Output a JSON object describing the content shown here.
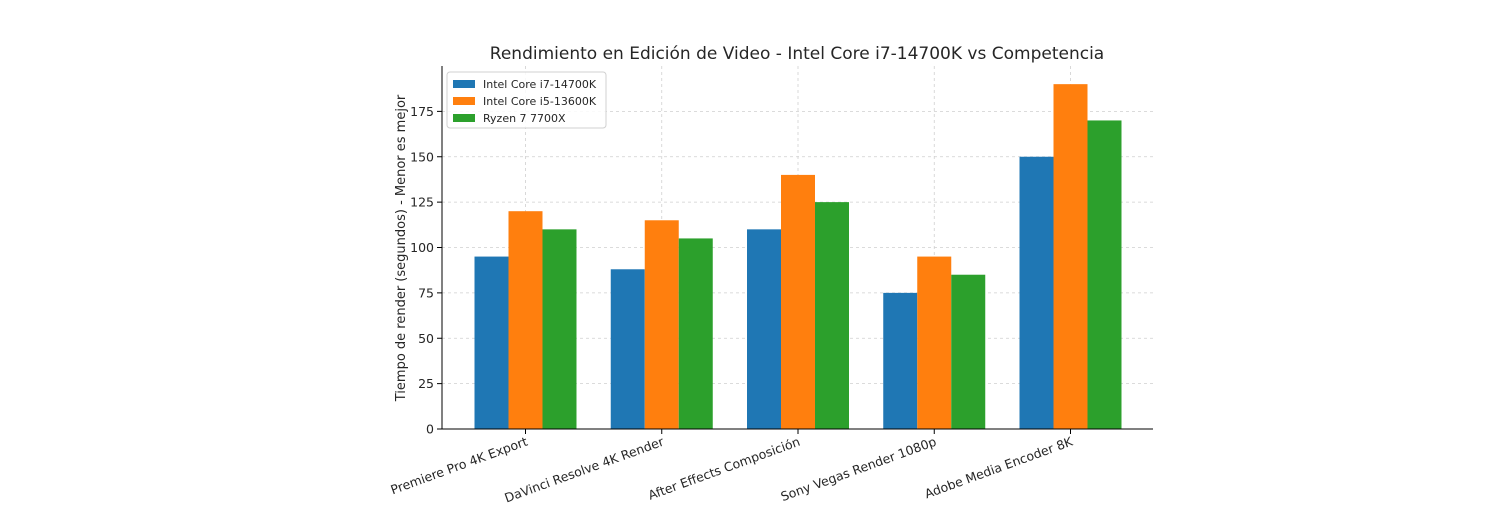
{
  "chart_data": {
    "type": "bar",
    "title": "Rendimiento en Edición de Video - Intel Core i7-14700K vs Competencia",
    "xlabel": "",
    "ylabel": "Tiempo de render (segundos) - Menor es mejor",
    "categories": [
      "Premiere Pro 4K Export",
      "DaVinci Resolve 4K Render",
      "After Effects Composición",
      "Sony Vegas Render 1080p",
      "Adobe Media Encoder 8K"
    ],
    "series": [
      {
        "name": "Intel Core i7-14700K",
        "color": "#1f77b4",
        "values": [
          95,
          88,
          110,
          75,
          150
        ]
      },
      {
        "name": "Intel Core i5-13600K",
        "color": "#ff7f0e",
        "values": [
          120,
          115,
          140,
          95,
          190
        ]
      },
      {
        "name": "Ryzen 7 7700X",
        "color": "#2ca02c",
        "values": [
          110,
          105,
          125,
          85,
          170
        ]
      }
    ],
    "ylim": [
      0,
      200
    ],
    "yticks": [
      0,
      25,
      50,
      75,
      100,
      125,
      150,
      175
    ],
    "grid": true,
    "legend_position": "top-left"
  }
}
